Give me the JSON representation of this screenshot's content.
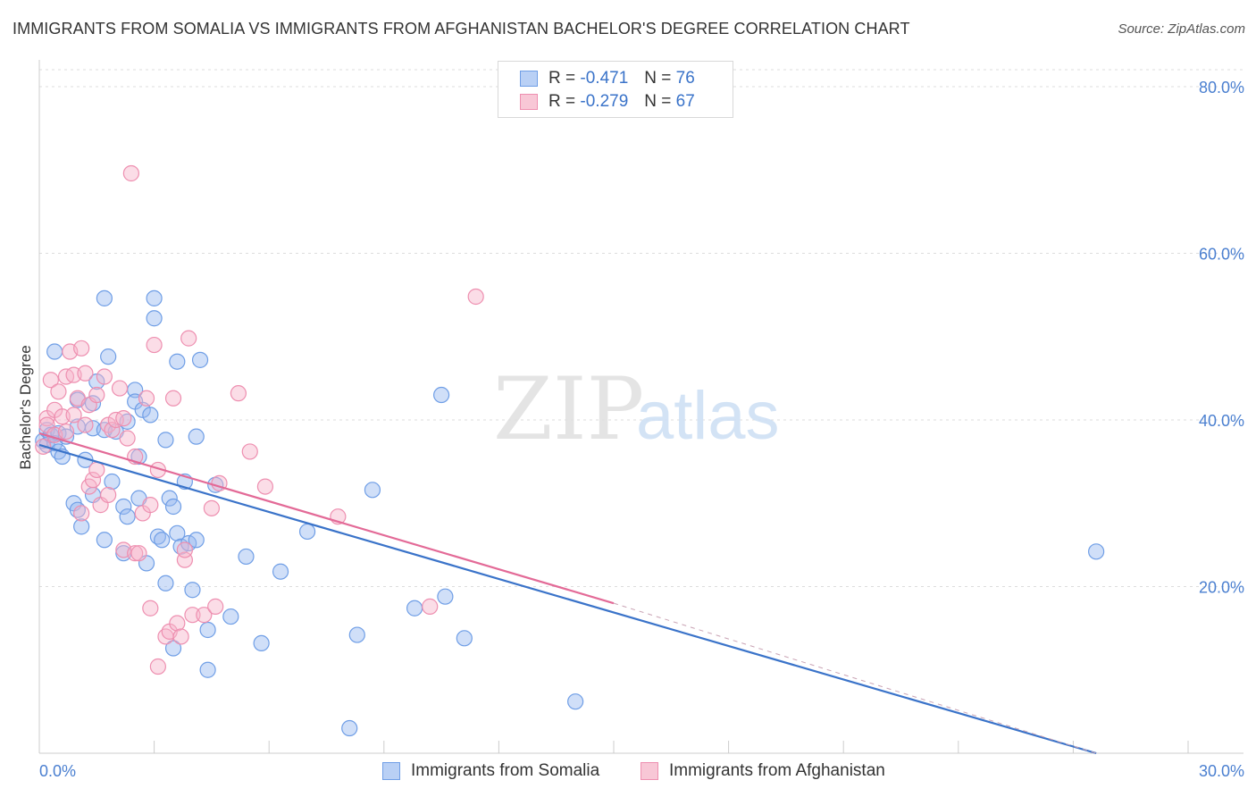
{
  "title": "IMMIGRANTS FROM SOMALIA VS IMMIGRANTS FROM AFGHANISTAN BACHELOR'S DEGREE CORRELATION CHART",
  "source": "Source: ZipAtlas.com",
  "watermark": {
    "zip": "ZIP",
    "atlas": "atlas"
  },
  "legend": {
    "r_label": "R =",
    "n_label": "N =",
    "rows": [
      {
        "r": "-0.471",
        "n": "76",
        "swatch_fill": "#b9d0f5",
        "swatch_stroke": "#6f9ee6"
      },
      {
        "r": "-0.279",
        "n": "67",
        "swatch_fill": "#f8c7d6",
        "swatch_stroke": "#ee8fb0"
      }
    ]
  },
  "bottom_legend": [
    {
      "label": "Immigrants from Somalia",
      "fill": "#b9d0f5",
      "stroke": "#6f9ee6"
    },
    {
      "label": "Immigrants from Afghanistan",
      "fill": "#f8c7d6",
      "stroke": "#ee8fb0"
    }
  ],
  "chart_data": {
    "type": "scatter",
    "title": "IMMIGRANTS FROM SOMALIA VS IMMIGRANTS FROM AFGHANISTAN BACHELOR'S DEGREE CORRELATION CHART",
    "xlabel": "",
    "ylabel": "Bachelor's Degree",
    "xlim": [
      0,
      30
    ],
    "ylim": [
      0,
      80
    ],
    "x_tick_labels": [
      "0.0%",
      "30.0%"
    ],
    "y_ticks": [
      20,
      40,
      60,
      80
    ],
    "y_tick_labels": [
      "20.0%",
      "40.0%",
      "60.0%",
      "80.0%"
    ],
    "grid": true,
    "legend_position": "top-center",
    "colors": {
      "somalia": "#3a73c9",
      "afghanistan": "#e36a97"
    },
    "series": [
      {
        "name": "Immigrants from Somalia",
        "color": "#3a73c9",
        "points": [
          [
            0.1,
            37.5
          ],
          [
            0.2,
            38.8
          ],
          [
            0.2,
            37.0
          ],
          [
            0.3,
            38.2
          ],
          [
            0.4,
            37.2
          ],
          [
            0.5,
            38.4
          ],
          [
            0.4,
            48.2
          ],
          [
            0.5,
            36.2
          ],
          [
            0.7,
            38.0
          ],
          [
            0.6,
            35.6
          ],
          [
            1.0,
            39.2
          ],
          [
            1.0,
            42.4
          ],
          [
            0.9,
            30.0
          ],
          [
            1.0,
            29.2
          ],
          [
            1.1,
            27.2
          ],
          [
            1.2,
            35.2
          ],
          [
            1.4,
            39.0
          ],
          [
            1.4,
            31.0
          ],
          [
            1.4,
            42.0
          ],
          [
            1.5,
            44.6
          ],
          [
            1.7,
            38.8
          ],
          [
            1.7,
            25.6
          ],
          [
            1.7,
            54.6
          ],
          [
            1.8,
            47.6
          ],
          [
            1.9,
            32.6
          ],
          [
            2.0,
            38.6
          ],
          [
            2.2,
            24.0
          ],
          [
            2.2,
            29.6
          ],
          [
            2.3,
            28.4
          ],
          [
            2.3,
            39.8
          ],
          [
            2.5,
            43.6
          ],
          [
            2.5,
            42.2
          ],
          [
            2.6,
            35.6
          ],
          [
            2.6,
            30.6
          ],
          [
            2.7,
            41.2
          ],
          [
            2.8,
            22.8
          ],
          [
            2.9,
            40.6
          ],
          [
            3.0,
            54.6
          ],
          [
            3.0,
            52.2
          ],
          [
            3.1,
            26.0
          ],
          [
            3.2,
            25.6
          ],
          [
            3.3,
            20.4
          ],
          [
            3.3,
            37.6
          ],
          [
            3.4,
            30.6
          ],
          [
            3.5,
            12.6
          ],
          [
            3.5,
            29.6
          ],
          [
            3.6,
            26.4
          ],
          [
            3.6,
            47.0
          ],
          [
            3.7,
            24.8
          ],
          [
            3.8,
            32.6
          ],
          [
            3.9,
            25.2
          ],
          [
            4.0,
            19.6
          ],
          [
            4.1,
            38.0
          ],
          [
            4.1,
            25.6
          ],
          [
            4.2,
            47.2
          ],
          [
            4.4,
            14.8
          ],
          [
            4.4,
            10.0
          ],
          [
            4.6,
            32.2
          ],
          [
            5.0,
            16.4
          ],
          [
            5.4,
            23.6
          ],
          [
            5.8,
            13.2
          ],
          [
            6.3,
            21.8
          ],
          [
            7.0,
            26.6
          ],
          [
            8.1,
            3.0
          ],
          [
            8.3,
            14.2
          ],
          [
            8.7,
            31.6
          ],
          [
            9.8,
            17.4
          ],
          [
            10.5,
            43.0
          ],
          [
            10.6,
            18.8
          ],
          [
            11.1,
            13.8
          ],
          [
            14.0,
            6.2
          ],
          [
            27.6,
            24.2
          ]
        ]
      },
      {
        "name": "Immigrants from Afghanistan",
        "color": "#e36a97",
        "points": [
          [
            0.1,
            36.8
          ],
          [
            0.2,
            40.2
          ],
          [
            0.2,
            39.4
          ],
          [
            0.3,
            44.8
          ],
          [
            0.4,
            38.2
          ],
          [
            0.4,
            41.2
          ],
          [
            0.5,
            43.4
          ],
          [
            0.6,
            40.4
          ],
          [
            0.7,
            38.6
          ],
          [
            0.7,
            45.2
          ],
          [
            0.8,
            48.2
          ],
          [
            0.9,
            40.6
          ],
          [
            0.9,
            45.4
          ],
          [
            1.0,
            42.6
          ],
          [
            1.1,
            28.8
          ],
          [
            1.1,
            48.6
          ],
          [
            1.2,
            45.6
          ],
          [
            1.2,
            39.4
          ],
          [
            1.3,
            32.0
          ],
          [
            1.3,
            41.8
          ],
          [
            1.4,
            32.8
          ],
          [
            1.5,
            43.0
          ],
          [
            1.5,
            34.0
          ],
          [
            1.6,
            29.8
          ],
          [
            1.7,
            45.2
          ],
          [
            1.8,
            39.4
          ],
          [
            1.8,
            31.0
          ],
          [
            1.9,
            38.8
          ],
          [
            2.0,
            40.0
          ],
          [
            2.1,
            43.8
          ],
          [
            2.2,
            24.4
          ],
          [
            2.2,
            40.2
          ],
          [
            2.3,
            37.8
          ],
          [
            2.4,
            69.6
          ],
          [
            2.5,
            35.6
          ],
          [
            2.5,
            24.0
          ],
          [
            2.6,
            24.0
          ],
          [
            2.7,
            28.8
          ],
          [
            2.8,
            42.6
          ],
          [
            2.9,
            29.8
          ],
          [
            2.9,
            17.4
          ],
          [
            3.0,
            49.0
          ],
          [
            3.1,
            10.4
          ],
          [
            3.1,
            34.0
          ],
          [
            3.3,
            14.0
          ],
          [
            3.4,
            14.6
          ],
          [
            3.5,
            42.6
          ],
          [
            3.6,
            15.6
          ],
          [
            3.7,
            14.0
          ],
          [
            3.8,
            23.2
          ],
          [
            3.8,
            24.4
          ],
          [
            3.9,
            49.8
          ],
          [
            4.0,
            16.6
          ],
          [
            4.3,
            16.6
          ],
          [
            4.5,
            29.4
          ],
          [
            4.6,
            17.6
          ],
          [
            4.7,
            32.4
          ],
          [
            5.2,
            43.2
          ],
          [
            5.5,
            36.2
          ],
          [
            5.9,
            32.0
          ],
          [
            7.8,
            28.4
          ],
          [
            11.4,
            54.8
          ],
          [
            10.2,
            17.6
          ]
        ]
      }
    ],
    "trend_lines": [
      {
        "series": "Immigrants from Somalia",
        "x": [
          0,
          27.6
        ],
        "y": [
          37.0,
          0.0
        ],
        "style": "solid"
      },
      {
        "series": "Immigrants from Afghanistan",
        "x": [
          0,
          15.0
        ],
        "y": [
          38.4,
          18.0
        ],
        "style": "solid"
      },
      {
        "series": "Immigrants from Afghanistan",
        "x": [
          15.0,
          27.6
        ],
        "y": [
          18.0,
          0.0
        ],
        "style": "dashed"
      }
    ]
  }
}
